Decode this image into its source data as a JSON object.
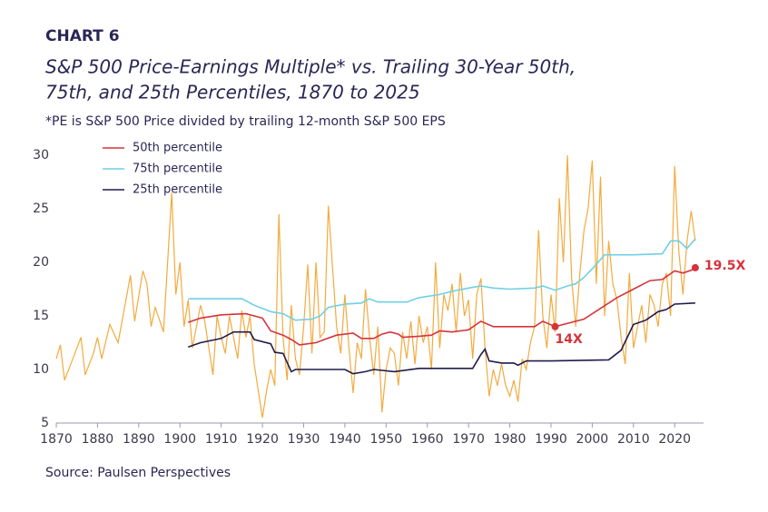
{
  "chart_data": {
    "type": "line",
    "label": "CHART 6",
    "title": [
      "S&P 500 Price-Earnings Multiple* vs. Trailing 30-Year 50th,",
      "75th, and 25th Percentiles, 1870 to 2025"
    ],
    "subtitle": "*PE is S&P 500 Price divided by trailing 12-month S&P 500 EPS",
    "source": "Source:  Paulsen Perspectives",
    "xlim": [
      1870,
      2027
    ],
    "xticks": [
      1870,
      1880,
      1890,
      1900,
      1910,
      1920,
      1930,
      1940,
      1950,
      1960,
      1970,
      1980,
      1990,
      2000,
      2010,
      2020
    ],
    "ylim": [
      5,
      30
    ],
    "yticks": [
      5,
      10,
      15,
      20,
      25,
      30
    ],
    "series": [
      {
        "color": "#f4aa3e",
        "x": [
          1870,
          1871,
          1872,
          1874,
          1876,
          1877,
          1879,
          1880,
          1881,
          1883,
          1885,
          1888,
          1889,
          1891,
          1892,
          1893,
          1894,
          1896,
          1898,
          1899,
          1900,
          1901,
          1902,
          1903,
          1905,
          1906,
          1908,
          1909,
          1910,
          1911,
          1912,
          1913,
          1914,
          1915,
          1916,
          1917,
          1918,
          1920,
          1921,
          1922,
          1923,
          1924,
          1925,
          1926,
          1927,
          1928,
          1929,
          1930,
          1931,
          1932,
          1933,
          1934,
          1935,
          1936,
          1937,
          1938,
          1939,
          1940,
          1941,
          1942,
          1943,
          1944,
          1945,
          1946,
          1947,
          1948,
          1949,
          1950,
          1951,
          1952,
          1953,
          1954,
          1955,
          1956,
          1957,
          1958,
          1959,
          1960,
          1961,
          1962,
          1963,
          1964,
          1965,
          1966,
          1967,
          1968,
          1969,
          1970,
          1971,
          1972,
          1973,
          1974,
          1975,
          1976,
          1977,
          1978,
          1979,
          1980,
          1981,
          1982,
          1983,
          1984,
          1985,
          1986,
          1987,
          1988,
          1989,
          1990,
          1991,
          1992,
          1993,
          1994,
          1995,
          1996,
          1997,
          1998,
          1999,
          2000,
          2001,
          2002,
          2003,
          2004,
          2005,
          2006,
          2007,
          2008,
          2009,
          2010,
          2011,
          2012,
          2013,
          2014,
          2015,
          2016,
          2017,
          2018,
          2019,
          2020,
          2021,
          2022,
          2023,
          2024,
          2025
        ],
        "values": [
          11,
          12.3,
          9,
          11,
          13,
          9.5,
          11.5,
          13,
          11,
          14.2,
          12.5,
          18.8,
          14.5,
          19.2,
          18,
          14,
          15.8,
          13.5,
          26.5,
          17,
          20,
          14,
          16.5,
          12,
          16,
          14.5,
          9.5,
          15,
          13,
          11.5,
          15,
          13,
          11,
          15.5,
          13,
          15,
          10.5,
          5.5,
          8,
          10,
          8.5,
          24.5,
          13,
          9,
          16,
          11,
          9.5,
          14,
          19.8,
          11.5,
          20,
          13,
          13.5,
          25.3,
          19.5,
          14,
          11.5,
          17,
          12,
          7.8,
          12.5,
          11,
          17.5,
          13,
          9.5,
          14,
          6,
          10,
          12,
          11.5,
          8.5,
          13.5,
          11,
          14.5,
          10.5,
          15,
          12.5,
          14,
          10,
          20,
          12,
          17,
          15.5,
          18,
          13.5,
          19,
          15,
          16.5,
          11,
          17,
          18.5,
          12,
          7.5,
          10,
          8.5,
          10.5,
          8.5,
          7.5,
          9,
          7,
          11,
          10,
          12.5,
          14,
          23,
          15,
          12,
          17,
          13.5,
          26,
          20,
          30,
          18.5,
          14,
          19,
          23,
          25,
          29.5,
          18,
          28,
          15,
          22,
          18,
          16.5,
          13,
          10.5,
          19,
          12,
          14,
          16,
          12.5,
          17,
          16,
          14,
          18,
          19,
          15,
          29,
          21,
          17,
          22,
          24.8,
          22
        ]
      },
      {
        "name": "50th percentile",
        "color": "#d6333b",
        "x": [
          1902,
          1905,
          1910,
          1916,
          1920,
          1922,
          1925,
          1927,
          1929,
          1933,
          1935,
          1938,
          1942,
          1944,
          1947,
          1949,
          1951,
          1953,
          1954,
          1958,
          1961,
          1963,
          1966,
          1970,
          1973,
          1976,
          1980,
          1986,
          1988,
          1991,
          1996,
          1998,
          2002,
          2006,
          2010,
          2014,
          2017,
          2020,
          2022,
          2025
        ],
        "values": [
          14.4,
          14.8,
          15.1,
          15.2,
          14.8,
          13.6,
          13.2,
          12.8,
          12.3,
          12.5,
          12.8,
          13.2,
          13.4,
          12.9,
          12.9,
          13.3,
          13.5,
          13.3,
          13,
          13.1,
          13.2,
          13.6,
          13.5,
          13.7,
          14.5,
          14,
          14,
          14,
          14.5,
          14,
          14.5,
          14.7,
          15.7,
          16.7,
          17.5,
          18.3,
          18.4,
          19.2,
          19,
          19.4
        ]
      },
      {
        "name": "75th percentile",
        "color": "#6fcfe6",
        "x": [
          1902,
          1915,
          1918,
          1922,
          1925,
          1928,
          1932,
          1934,
          1936,
          1940,
          1944,
          1946,
          1948,
          1955,
          1958,
          1963,
          1966,
          1970,
          1973,
          1976,
          1980,
          1986,
          1988,
          1991,
          1994,
          1996,
          1998,
          2000,
          2003,
          2010,
          2017,
          2019,
          2021,
          2023,
          2025
        ],
        "values": [
          16.6,
          16.6,
          16,
          15.4,
          15.2,
          14.6,
          14.7,
          15,
          15.8,
          16.1,
          16.2,
          16.6,
          16.3,
          16.3,
          16.7,
          17,
          17.3,
          17.6,
          17.8,
          17.6,
          17.5,
          17.6,
          17.8,
          17.4,
          17.8,
          18,
          18.6,
          19.4,
          20.7,
          20.7,
          20.8,
          22,
          22,
          21.3,
          22.2
        ]
      },
      {
        "name": "25th percentile",
        "color": "#1f1c4d",
        "x": [
          1902,
          1905,
          1910,
          1913,
          1917,
          1918,
          1922,
          1923,
          1925,
          1927,
          1928,
          1940,
          1942,
          1945,
          1947,
          1952,
          1958,
          1971,
          1973,
          1974,
          1975,
          1978,
          1981,
          1982,
          1984,
          1990,
          2004,
          2007,
          2010,
          2013,
          2016,
          2018,
          2020,
          2025
        ],
        "values": [
          12.1,
          12.5,
          12.9,
          13.5,
          13.5,
          12.8,
          12.4,
          11.6,
          11.5,
          9.8,
          10,
          10,
          9.6,
          9.8,
          10,
          9.8,
          10.1,
          10.1,
          11.4,
          11.9,
          10.8,
          10.6,
          10.6,
          10.4,
          10.8,
          10.8,
          10.9,
          11.8,
          14.2,
          14.6,
          15.4,
          15.6,
          16.1,
          16.2
        ]
      }
    ],
    "annotations": [
      {
        "text": "14X",
        "x": 1991,
        "y": 14,
        "color": "#d6333b"
      },
      {
        "text": "19.5X",
        "x": 2025,
        "y": 19.5,
        "color": "#d6333b"
      }
    ]
  }
}
